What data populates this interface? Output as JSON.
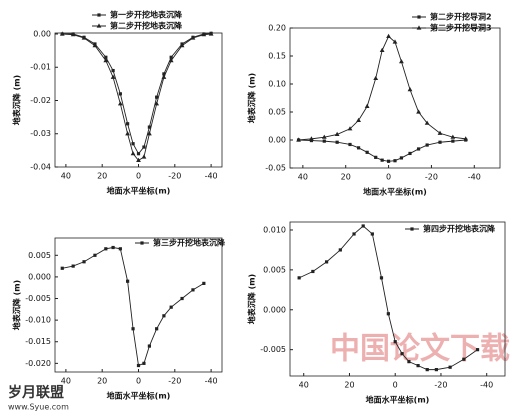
{
  "chart_data": [
    {
      "type": "line",
      "xlabel": "地面水平坐标(m)",
      "ylabel": "地表沉降 (m)",
      "x": [
        42,
        36,
        30,
        24,
        18,
        14,
        10,
        6,
        3,
        0,
        -3,
        -6,
        -10,
        -14,
        -18,
        -24,
        -30,
        -36,
        -40
      ],
      "series": [
        {
          "name": "第一步开挖地表沉降",
          "color": "#222222",
          "marker": "square",
          "values": [
            0,
            0,
            -0.001,
            -0.003,
            -0.007,
            -0.011,
            -0.018,
            -0.027,
            -0.033,
            -0.036,
            -0.034,
            -0.028,
            -0.019,
            -0.012,
            -0.007,
            -0.003,
            -0.001,
            0,
            0.0002
          ]
        },
        {
          "name": "第二步开挖地表沉降",
          "color": "#222222",
          "marker": "triangle",
          "values": [
            0,
            -0.0002,
            -0.0012,
            -0.0035,
            -0.008,
            -0.013,
            -0.021,
            -0.03,
            -0.036,
            -0.038,
            -0.037,
            -0.03,
            -0.021,
            -0.013,
            -0.008,
            -0.0035,
            -0.0012,
            -0.0002,
            0
          ]
        }
      ],
      "xlim": [
        46,
        -46
      ],
      "xticks": [
        40,
        20,
        0,
        -20,
        -40
      ],
      "ylim": [
        -0.04,
        0.0003
      ],
      "yticks": [
        {
          "value": 0,
          "label": "0.00"
        },
        {
          "value": -0.01,
          "label": "-0.01"
        },
        {
          "value": -0.02,
          "label": "-0.02"
        },
        {
          "value": -0.03,
          "label": "-0.03"
        },
        {
          "value": -0.04,
          "label": "-0.04"
        }
      ]
    },
    {
      "type": "line",
      "xlabel": "地面水平坐标(m)",
      "ylabel": "地表沉降 (m)",
      "x": [
        42,
        36,
        30,
        24,
        18,
        14,
        10,
        6,
        3,
        0,
        -3,
        -6,
        -10,
        -14,
        -18,
        -24,
        -30,
        -36
      ],
      "series": [
        {
          "name": "第二步开挖导洞2",
          "color": "#222222",
          "marker": "square",
          "values": [
            0,
            -0.001,
            -0.002,
            -0.004,
            -0.008,
            -0.014,
            -0.022,
            -0.031,
            -0.036,
            -0.038,
            -0.037,
            -0.032,
            -0.024,
            -0.016,
            -0.009,
            -0.004,
            -0.002,
            0
          ]
        },
        {
          "name": "第二步开挖导洞3",
          "color": "#222222",
          "marker": "triangle",
          "values": [
            0,
            0.002,
            0.005,
            0.01,
            0.02,
            0.035,
            0.06,
            0.11,
            0.16,
            0.185,
            0.175,
            0.14,
            0.09,
            0.05,
            0.03,
            0.012,
            0.005,
            0.002
          ]
        }
      ],
      "xlim": [
        46,
        -52
      ],
      "xticks": [
        40,
        20,
        0,
        -20,
        -40
      ],
      "ylim": [
        -0.05,
        0.2
      ],
      "yticks": [
        {
          "value": 0.2,
          "label": "0.20"
        },
        {
          "value": 0.15,
          "label": "0.15"
        },
        {
          "value": 0.1,
          "label": "0.10"
        },
        {
          "value": 0.05,
          "label": "0.05"
        },
        {
          "value": 0,
          "label": "0.00"
        },
        {
          "value": -0.05,
          "label": "-0.05"
        }
      ]
    },
    {
      "type": "line",
      "xlabel": "地面水平坐标(m)",
      "ylabel": "地表沉降 (m)",
      "x": [
        42,
        36,
        30,
        24,
        18,
        14,
        10,
        6,
        3,
        0,
        -3,
        -6,
        -10,
        -14,
        -18,
        -24,
        -30,
        -36
      ],
      "series": [
        {
          "name": "第三步开挖地表沉降",
          "color": "#222222",
          "marker": "square",
          "values": [
            0.002,
            0.0025,
            0.0035,
            0.005,
            0.0065,
            0.0068,
            0.0065,
            -0.001,
            -0.012,
            -0.0205,
            -0.02,
            -0.016,
            -0.012,
            -0.009,
            -0.007,
            -0.005,
            -0.003,
            -0.0015
          ]
        }
      ],
      "xlim": [
        46,
        -46
      ],
      "xticks": [
        40,
        20,
        0,
        -20,
        -40
      ],
      "ylim": [
        -0.022,
        0.009
      ],
      "yticks": [
        {
          "value": 0.005,
          "label": "0.005"
        },
        {
          "value": 0,
          "label": "0.000"
        },
        {
          "value": -0.005,
          "label": "-0.005"
        },
        {
          "value": -0.01,
          "label": "-0.010"
        },
        {
          "value": -0.015,
          "label": "-0.015"
        },
        {
          "value": -0.02,
          "label": "-0.020"
        }
      ]
    },
    {
      "type": "line",
      "xlabel": "地面水平坐标(m)",
      "ylabel": "地表沉降 (m)",
      "x": [
        42,
        36,
        30,
        24,
        18,
        14,
        10,
        6,
        3,
        0,
        -3,
        -6,
        -10,
        -14,
        -18,
        -24,
        -30,
        -36
      ],
      "series": [
        {
          "name": "第四步开挖地表沉降",
          "color": "#222222",
          "marker": "square",
          "values": [
            0.004,
            0.0048,
            0.006,
            0.0075,
            0.0095,
            0.0105,
            0.0095,
            0.004,
            -0.0005,
            -0.004,
            -0.0055,
            -0.0065,
            -0.007,
            -0.0075,
            -0.0075,
            -0.0072,
            -0.0062,
            -0.005
          ]
        }
      ],
      "xlim": [
        46,
        -48
      ],
      "xticks": [
        40,
        20,
        0,
        -20,
        -40
      ],
      "ylim": [
        -0.0083,
        0.011
      ],
      "yticks": [
        {
          "value": 0.01,
          "label": "0.010"
        },
        {
          "value": 0.005,
          "label": "0.005"
        },
        {
          "value": 0,
          "label": "0.000"
        },
        {
          "value": -0.005,
          "label": "-0.005"
        }
      ]
    }
  ],
  "watermark": {
    "site": "中国论文下载",
    "brand": "岁月联盟",
    "url": "www.Syue.com"
  }
}
